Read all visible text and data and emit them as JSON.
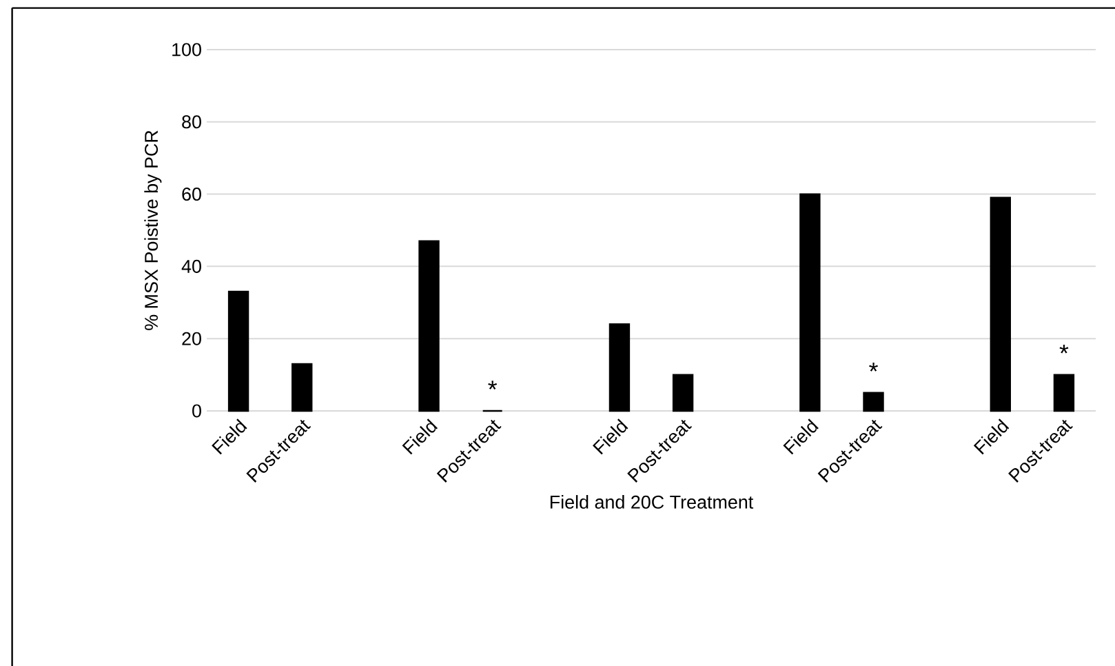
{
  "chart_data": {
    "type": "bar",
    "xlabel": "Field and 20C Treatment",
    "ylabel": "% MSX Poistive by PCR",
    "categories": [
      "Field",
      "Post-treat",
      null,
      "Field",
      "Post-treat",
      null,
      "Field",
      "Post-treat",
      null,
      "Field",
      "Post-treat",
      null,
      "Field",
      "Post-treat"
    ],
    "values": [
      33,
      13,
      null,
      47,
      0,
      null,
      24,
      10,
      null,
      60,
      5,
      null,
      59,
      10
    ],
    "value_labels": [
      null,
      null,
      null,
      null,
      "*",
      null,
      null,
      null,
      null,
      null,
      "*",
      null,
      null,
      "*"
    ],
    "color": "#000000",
    "ylim": [
      0,
      100
    ],
    "yticks": [
      0,
      20,
      40,
      60,
      80,
      100
    ],
    "grid": "y"
  }
}
